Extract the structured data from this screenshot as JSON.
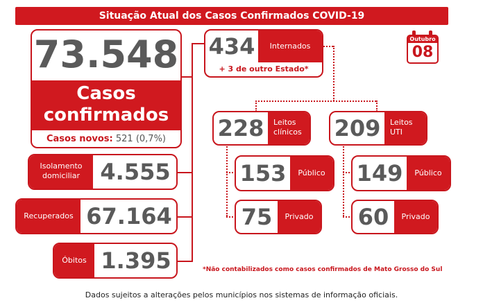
{
  "header": {
    "title": "Situação Atual dos Casos Confirmados COVID-19"
  },
  "calendar": {
    "month": "Outubro",
    "day": "08"
  },
  "confirmed": {
    "total": "73.548",
    "label_line1": "Casos",
    "label_line2": "confirmados",
    "new_label": "Casos novos:",
    "new_value": "521 (0,7%)"
  },
  "isolation": {
    "label_line1": "Isolamento",
    "label_line2": "domiciliar",
    "value": "4.555"
  },
  "recovered": {
    "label": "Recuperados",
    "value": "67.164"
  },
  "deaths": {
    "label": "Óbitos",
    "value": "1.395"
  },
  "hospitalized": {
    "value": "434",
    "label": "Internados",
    "note": "+ 3 de outro Estado*"
  },
  "clinical_beds": {
    "value": "228",
    "label_line1": "Leitos",
    "label_line2": "clínicos"
  },
  "icu_beds": {
    "value": "209",
    "label_line1": "Leitos",
    "label_line2": "UTI"
  },
  "clinical_public": {
    "value": "153",
    "label": "Público"
  },
  "clinical_private": {
    "value": "75",
    "label": "Privado"
  },
  "icu_public": {
    "value": "149",
    "label": "Público"
  },
  "icu_private": {
    "value": "60",
    "label": "Privado"
  },
  "footnote": "*Não contabilizados como casos confirmados de Mato Grosso do Sul",
  "disclaimer": "Dados sujeitos a alterações pelos municípios nos sistemas de informação oficiais."
}
